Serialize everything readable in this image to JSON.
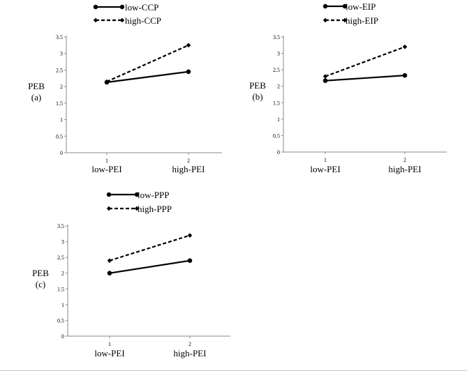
{
  "chart_data": [
    {
      "type": "line",
      "panel_label": "(a)",
      "ylabel": "PEB",
      "x": [
        1,
        2
      ],
      "category_labels": [
        "low-PEI",
        "high-PEI"
      ],
      "ylim": [
        0,
        3.5
      ],
      "yticks": [
        "0",
        "0.5",
        "1",
        "1.5",
        "2",
        "2.5",
        "3",
        "3.5"
      ],
      "grid": false,
      "legend_position": "top",
      "series": [
        {
          "name": "low-CCP",
          "values": [
            2.13,
            2.45
          ],
          "style": "solid",
          "marker": "circle"
        },
        {
          "name": "high-CCP",
          "values": [
            2.15,
            3.25
          ],
          "style": "dashed",
          "marker": "diamond"
        }
      ]
    },
    {
      "type": "line",
      "panel_label": "(b)",
      "ylabel": "PEB",
      "x": [
        1,
        2
      ],
      "category_labels": [
        "low-PEI",
        "high-PEI"
      ],
      "ylim": [
        0,
        3.5
      ],
      "yticks": [
        "0",
        "0.5",
        "1",
        "1.5",
        "2",
        "2.5",
        "3",
        "3.5"
      ],
      "grid": false,
      "legend_position": "top",
      "series": [
        {
          "name": "low-EIP",
          "values": [
            2.17,
            2.33
          ],
          "style": "solid",
          "marker": "circle"
        },
        {
          "name": "high-EIP",
          "values": [
            2.3,
            3.2
          ],
          "style": "dashed",
          "marker": "diamond"
        }
      ]
    },
    {
      "type": "line",
      "panel_label": "(c)",
      "ylabel": "PEB",
      "x": [
        1,
        2
      ],
      "category_labels": [
        "low-PEI",
        "high-PEI"
      ],
      "ylim": [
        0,
        3.5
      ],
      "yticks": [
        "0",
        "0.5",
        "1",
        "1.5",
        "2",
        "2.5",
        "3",
        "3.5"
      ],
      "grid": false,
      "legend_position": "top",
      "series": [
        {
          "name": "low-PPP",
          "values": [
            2.0,
            2.4
          ],
          "style": "solid",
          "marker": "circle"
        },
        {
          "name": "high-PPP",
          "values": [
            2.4,
            3.2
          ],
          "style": "dashed",
          "marker": "diamond"
        }
      ]
    }
  ]
}
